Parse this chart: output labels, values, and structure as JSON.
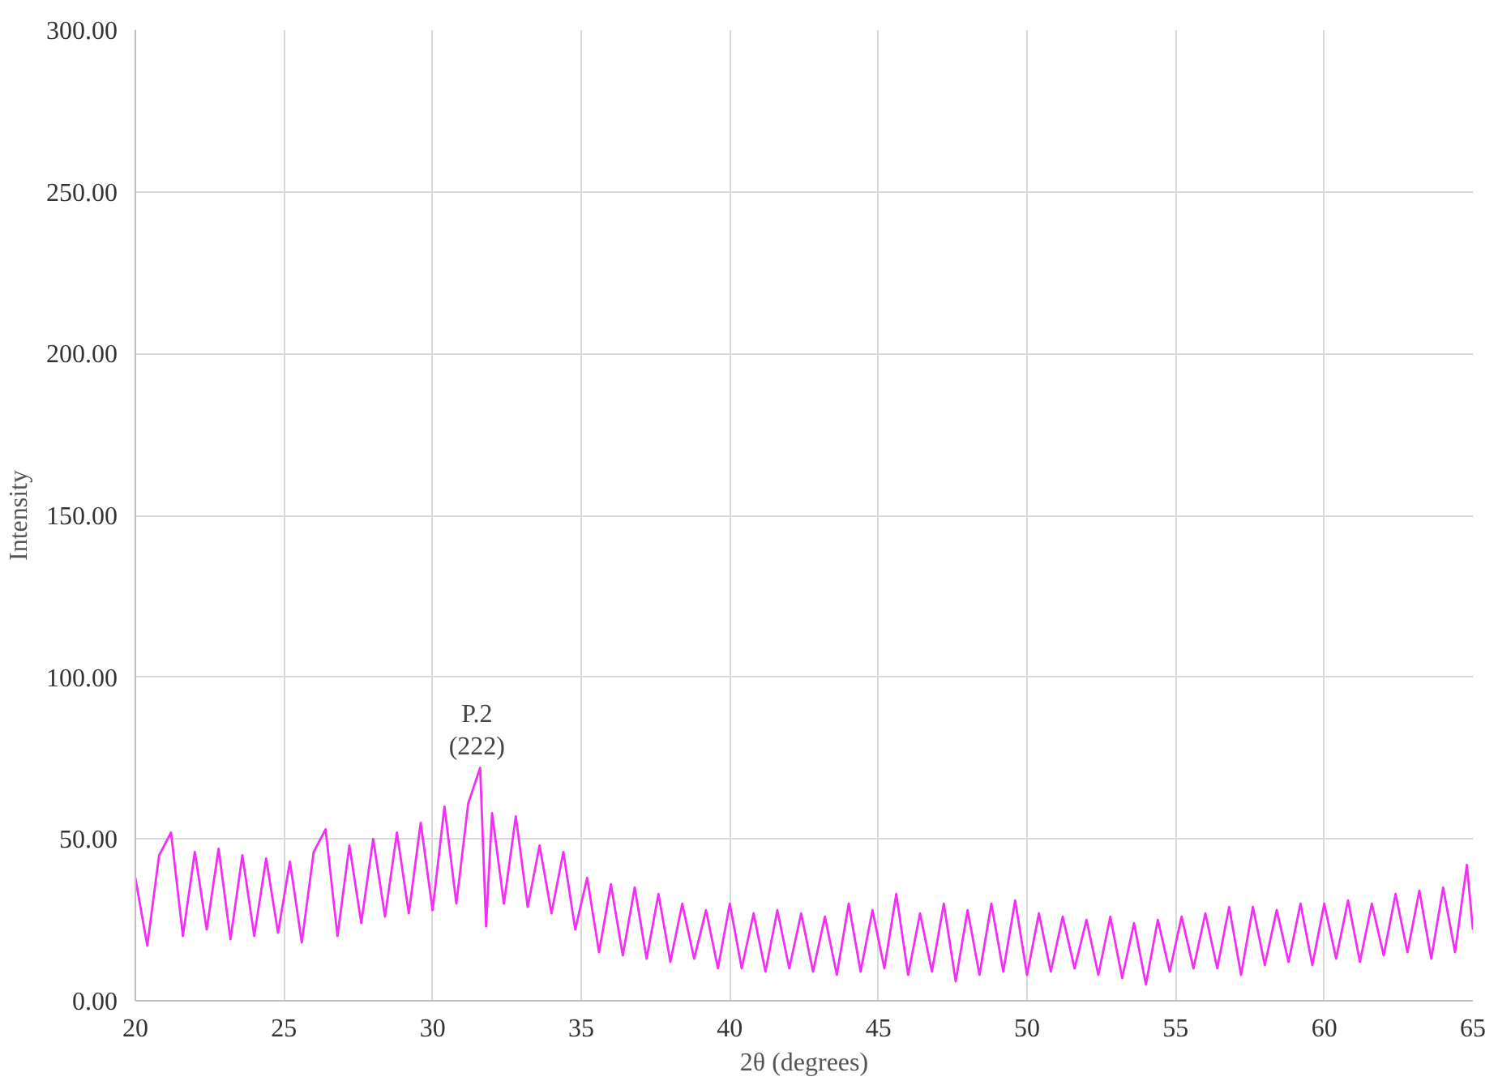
{
  "chart_data": {
    "type": "line",
    "xlabel": "2θ (degrees)",
    "ylabel": "Intensity",
    "x": [
      20.0,
      20.4,
      20.8,
      21.2,
      21.6,
      22.0,
      22.4,
      22.8,
      23.2,
      23.6,
      24.0,
      24.4,
      24.8,
      25.2,
      25.6,
      26.0,
      26.4,
      26.8,
      27.2,
      27.6,
      28.0,
      28.4,
      28.8,
      29.2,
      29.6,
      30.0,
      30.4,
      30.8,
      31.2,
      31.6,
      31.8,
      32.0,
      32.4,
      32.8,
      33.2,
      33.6,
      34.0,
      34.4,
      34.8,
      35.2,
      35.6,
      36.0,
      36.4,
      36.8,
      37.2,
      37.6,
      38.0,
      38.4,
      38.8,
      39.2,
      39.6,
      40.0,
      40.4,
      40.8,
      41.2,
      41.6,
      42.0,
      42.4,
      42.8,
      43.2,
      43.6,
      44.0,
      44.4,
      44.8,
      45.2,
      45.6,
      46.0,
      46.4,
      46.8,
      47.2,
      47.6,
      48.0,
      48.4,
      48.8,
      49.2,
      49.6,
      50.0,
      50.4,
      50.8,
      51.2,
      51.6,
      52.0,
      52.4,
      52.8,
      53.2,
      53.6,
      54.0,
      54.4,
      54.8,
      55.2,
      55.6,
      56.0,
      56.4,
      56.8,
      57.2,
      57.6,
      58.0,
      58.4,
      58.8,
      59.2,
      59.6,
      60.0,
      60.4,
      60.8,
      61.2,
      61.6,
      62.0,
      62.4,
      62.8,
      63.2,
      63.6,
      64.0,
      64.4,
      64.8,
      65.0
    ],
    "series": [
      {
        "color": "#f52ef5",
        "values": [
          38,
          17,
          45,
          52,
          20,
          46,
          22,
          47,
          19,
          45,
          20,
          44,
          21,
          43,
          18,
          46,
          53,
          20,
          48,
          24,
          50,
          26,
          52,
          27,
          55,
          28,
          60,
          30,
          61,
          72,
          23,
          58,
          30,
          57,
          29,
          48,
          27,
          46,
          22,
          38,
          15,
          36,
          14,
          35,
          13,
          33,
          12,
          30,
          13,
          28,
          10,
          30,
          10,
          27,
          9,
          28,
          10,
          27,
          9,
          26,
          8,
          30,
          9,
          28,
          10,
          33,
          8,
          27,
          9,
          30,
          6,
          28,
          8,
          30,
          9,
          31,
          8,
          27,
          9,
          26,
          10,
          25,
          8,
          26,
          7,
          24,
          5,
          25,
          9,
          26,
          10,
          27,
          10,
          29,
          8,
          29,
          11,
          28,
          12,
          30,
          11,
          30,
          13,
          31,
          12,
          30,
          14,
          33,
          15,
          34,
          13,
          35,
          15,
          42,
          22
        ]
      }
    ],
    "xlim": [
      20,
      65
    ],
    "xticks": [
      20,
      25,
      30,
      35,
      40,
      45,
      50,
      55,
      60,
      65
    ],
    "ylim": [
      0,
      300
    ],
    "yticks": [
      {
        "value": 0,
        "label": "0.00"
      },
      {
        "value": 50,
        "label": "50.00"
      },
      {
        "value": 100,
        "label": "100.00"
      },
      {
        "value": 150,
        "label": "150.00"
      },
      {
        "value": 200,
        "label": "200.00"
      },
      {
        "value": 250,
        "label": "250.00"
      },
      {
        "value": 300,
        "label": "300.00"
      }
    ],
    "annotations": [
      {
        "text": "P.2\n(222)",
        "x": 31.6,
        "y": 72
      }
    ],
    "grid": true,
    "marker": "none",
    "line_style": "solid"
  }
}
